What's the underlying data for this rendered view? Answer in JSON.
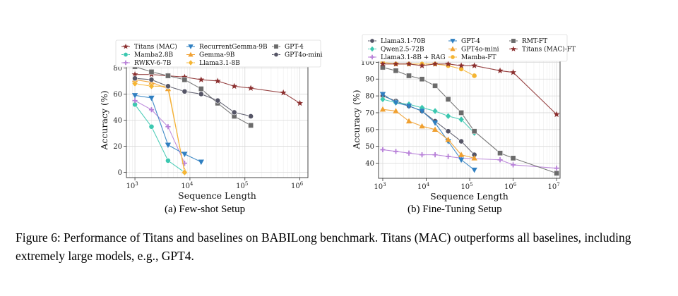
{
  "subcaptions": {
    "a": "(a) Few-shot Setup",
    "b": "(b) Fine-Tuning Setup"
  },
  "figure_caption": "Figure 6: Performance of Titans and baselines on BABILong benchmark. Titans (MAC) outperforms all baselines, including extremely large models, e.g., GPT4.",
  "chart_data": [
    {
      "id": "few_shot",
      "type": "line",
      "xscale": "log",
      "xlabel": "Sequence Length",
      "ylabel": "Accuracy (%)",
      "xlim": [
        700,
        1400000
      ],
      "ylim": [
        -4,
        84
      ],
      "xticks": [
        {
          "v": 1000,
          "b": "10",
          "e": "3"
        },
        {
          "v": 10000,
          "b": "10",
          "e": "4"
        },
        {
          "v": 100000,
          "b": "10",
          "e": "5"
        },
        {
          "v": 1000000,
          "b": "10",
          "e": "6"
        }
      ],
      "yticks": [
        0,
        20,
        40,
        60,
        80
      ],
      "legend_position": "top",
      "series": [
        {
          "name": "Titans (MAC)",
          "color": "#8b2e2e",
          "marker": "star",
          "x": [
            1000,
            2000,
            4000,
            8000,
            16000,
            32000,
            64000,
            128000,
            500000,
            1000000
          ],
          "y": [
            75,
            75,
            74,
            73,
            71,
            70,
            66,
            64.5,
            61,
            53
          ]
        },
        {
          "name": "Mamba2.8B",
          "color": "#3cc8b0",
          "marker": "circle",
          "x": [
            1000,
            2000,
            4000,
            8000
          ],
          "y": [
            52,
            35,
            9,
            0
          ]
        },
        {
          "name": "RWKV-6-7B",
          "color": "#b77fd8",
          "marker": "plus",
          "x": [
            1000,
            2000,
            4000,
            8000
          ],
          "y": [
            55,
            48,
            35,
            7
          ]
        },
        {
          "name": "RecurrentGemma-9B",
          "color": "#2f7fc1",
          "marker": "tri_down",
          "x": [
            1000,
            2000,
            4000,
            8000,
            16000
          ],
          "y": [
            59,
            57,
            21,
            14,
            8
          ]
        },
        {
          "name": "Gemma-9B",
          "color": "#f0a030",
          "marker": "tri_up",
          "x": [
            1000,
            2000,
            4000,
            8000
          ],
          "y": [
            71,
            69,
            64,
            1
          ]
        },
        {
          "name": "Llama3.1-8B",
          "color": "#f5b533",
          "marker": "diamond",
          "x": [
            1000,
            2000,
            4000,
            8000
          ],
          "y": [
            68,
            66,
            66,
            0
          ]
        },
        {
          "name": "GPT-4",
          "color": "#6b6b6b",
          "marker": "square",
          "x": [
            1000,
            2000,
            4000,
            8000,
            16000,
            32000,
            64000,
            128000
          ],
          "y": [
            81,
            77,
            74,
            71,
            64,
            53,
            43,
            36
          ]
        },
        {
          "name": "GPT4o-mini",
          "color": "#555566",
          "marker": "circle",
          "x": [
            1000,
            2000,
            4000,
            8000,
            16000,
            32000,
            64000,
            128000
          ],
          "y": [
            72,
            71,
            66,
            62,
            60,
            55,
            46,
            43
          ]
        }
      ]
    },
    {
      "id": "fine_tuning",
      "type": "line",
      "xscale": "log",
      "xlabel": "Sequence Length",
      "ylabel": "Accuracy (%)",
      "xlim": [
        800,
        12000000
      ],
      "ylim": [
        31,
        101
      ],
      "xticks": [
        {
          "v": 1000,
          "b": "10",
          "e": "3"
        },
        {
          "v": 10000,
          "b": "10",
          "e": "4"
        },
        {
          "v": 100000,
          "b": "10",
          "e": "5"
        },
        {
          "v": 1000000,
          "b": "10",
          "e": "6"
        },
        {
          "v": 10000000,
          "b": "10",
          "e": "7"
        }
      ],
      "yticks": [
        40,
        50,
        60,
        70,
        80,
        90,
        100
      ],
      "legend_position": "top",
      "series": [
        {
          "name": "Llama3.1-70B",
          "color": "#555566",
          "marker": "circle",
          "x": [
            1000,
            2000,
            4000,
            8000,
            16000,
            32000,
            64000,
            128000
          ],
          "y": [
            80,
            77,
            74,
            71,
            65,
            59,
            53,
            45
          ]
        },
        {
          "name": "Qwen2.5-72B",
          "color": "#3cc8b0",
          "marker": "diamond",
          "x": [
            1000,
            2000,
            4000,
            8000,
            16000,
            32000,
            64000,
            128000
          ],
          "y": [
            78,
            76,
            75,
            73,
            71,
            68,
            66,
            58
          ]
        },
        {
          "name": "Llama3.1-8B + RAG",
          "color": "#b77fd8",
          "marker": "plus",
          "x": [
            1000,
            2000,
            4000,
            8000,
            16000,
            32000,
            64000,
            500000,
            1000000,
            10000000
          ],
          "y": [
            48,
            47,
            46,
            45,
            45,
            44,
            43,
            42,
            39,
            37
          ]
        },
        {
          "name": "GPT-4",
          "color": "#2f7fc1",
          "marker": "tri_down",
          "x": [
            1000,
            2000,
            4000,
            8000,
            16000,
            32000,
            64000,
            128000
          ],
          "y": [
            81,
            76,
            74,
            71,
            64,
            53,
            42,
            36
          ]
        },
        {
          "name": "GPT4o-mini",
          "color": "#f0a030",
          "marker": "tri_up",
          "x": [
            1000,
            2000,
            4000,
            8000,
            16000,
            32000,
            64000,
            128000
          ],
          "y": [
            72,
            71,
            65,
            62,
            60,
            54,
            45,
            43
          ]
        },
        {
          "name": "Mamba-FT",
          "color": "#f5b533",
          "marker": "circle",
          "x": [
            1000,
            2000,
            4000,
            8000,
            16000,
            32000,
            64000,
            128000
          ],
          "y": [
            100,
            99,
            99,
            99,
            99,
            98,
            96,
            92
          ]
        },
        {
          "name": "RMT-FT",
          "color": "#6b6b6b",
          "marker": "square",
          "x": [
            1000,
            2000,
            4000,
            8000,
            16000,
            32000,
            64000,
            128000,
            500000,
            1000000,
            10000000
          ],
          "y": [
            97,
            95,
            92,
            90,
            86,
            78,
            70,
            59,
            46,
            43,
            34
          ]
        },
        {
          "name": "Titans (MAC)-FT",
          "color": "#8b2e2e",
          "marker": "star",
          "x": [
            1000,
            2000,
            4000,
            8000,
            16000,
            32000,
            64000,
            128000,
            500000,
            1000000,
            10000000
          ],
          "y": [
            99,
            99,
            99,
            98,
            99,
            99,
            98,
            98,
            95,
            94,
            69
          ]
        }
      ]
    }
  ]
}
